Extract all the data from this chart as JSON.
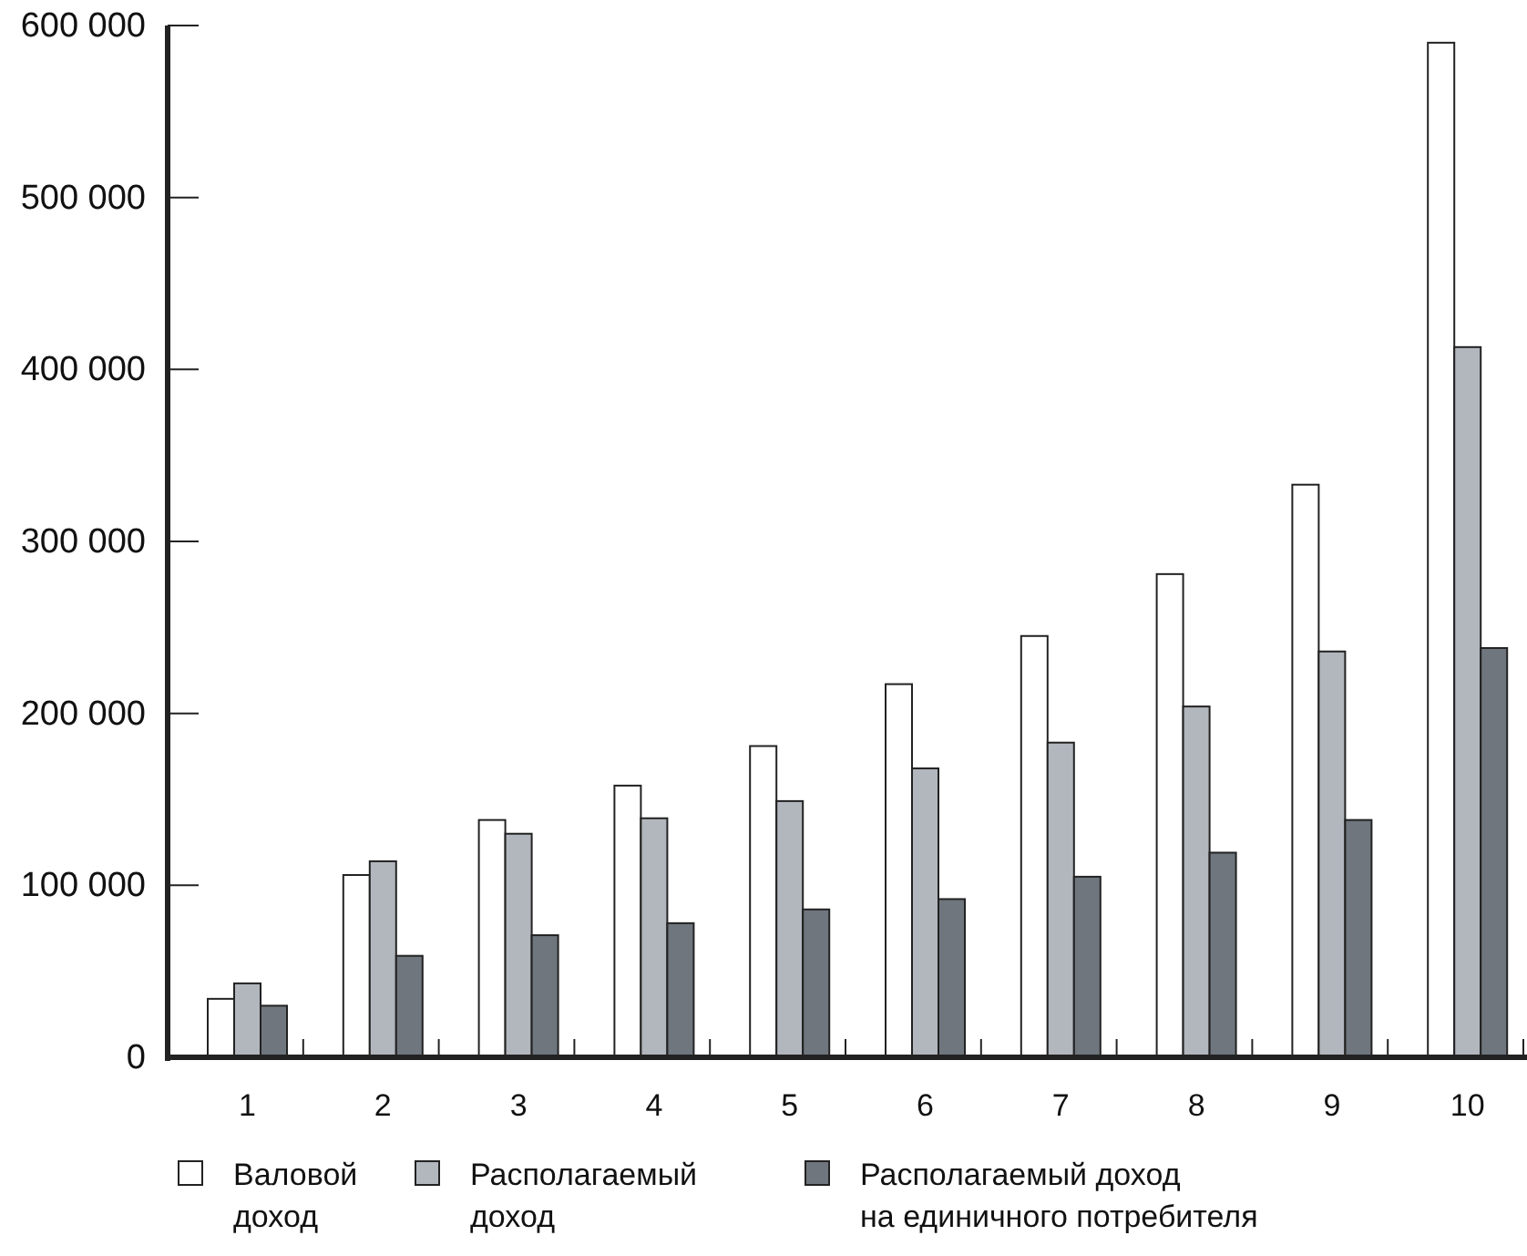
{
  "chart_data": {
    "type": "bar",
    "categories": [
      "1",
      "2",
      "3",
      "4",
      "5",
      "6",
      "7",
      "8",
      "9",
      "10"
    ],
    "series": [
      {
        "name": "Валовой доход",
        "color": "#ffffff",
        "values": [
          34000,
          106000,
          138000,
          158000,
          181000,
          217000,
          245000,
          281000,
          333000,
          590000
        ]
      },
      {
        "name": "Располагаемый доход",
        "color": "#b2b6bd",
        "values": [
          43000,
          114000,
          130000,
          139000,
          149000,
          168000,
          183000,
          204000,
          236000,
          413000
        ]
      },
      {
        "name": "Располагаемый доход на единичного потребителя",
        "color": "#6f767d",
        "values": [
          30000,
          59000,
          71000,
          78000,
          86000,
          92000,
          105000,
          119000,
          138000,
          238000
        ]
      }
    ],
    "ylim": [
      0,
      600000
    ],
    "yticks": [
      0,
      {
        "value": 100000,
        "label": "100 000"
      },
      {
        "value": 200000,
        "label": "200 000"
      },
      {
        "value": 300000,
        "label": "300 000"
      },
      {
        "value": 400000,
        "label": "400 000"
      },
      {
        "value": 500000,
        "label": "500 000"
      },
      {
        "value": 600000,
        "label": "600 000"
      }
    ],
    "grid": false,
    "legend": "bottom"
  }
}
